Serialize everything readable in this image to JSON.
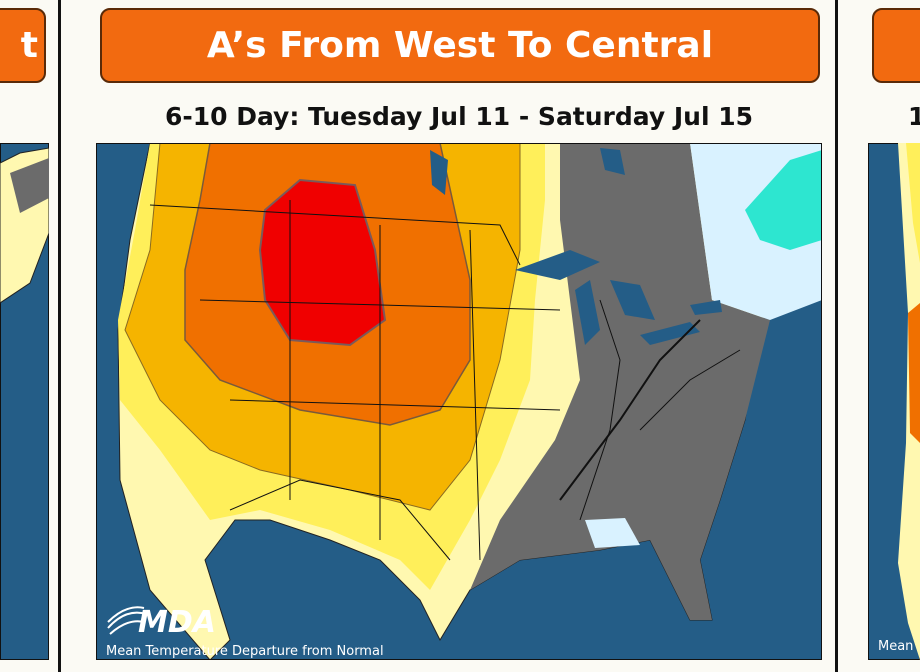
{
  "title": "A’s From West To Central",
  "subtitle": "6-10 Day: Tuesday Jul 11 - Saturday Jul 15",
  "map": {
    "logo": "MDA",
    "caption": "Mean Temperature Departure from Normal"
  },
  "left_panel": {
    "title": "t"
  },
  "right_panel": {
    "subtitle": "1",
    "caption": "Mean"
  }
}
